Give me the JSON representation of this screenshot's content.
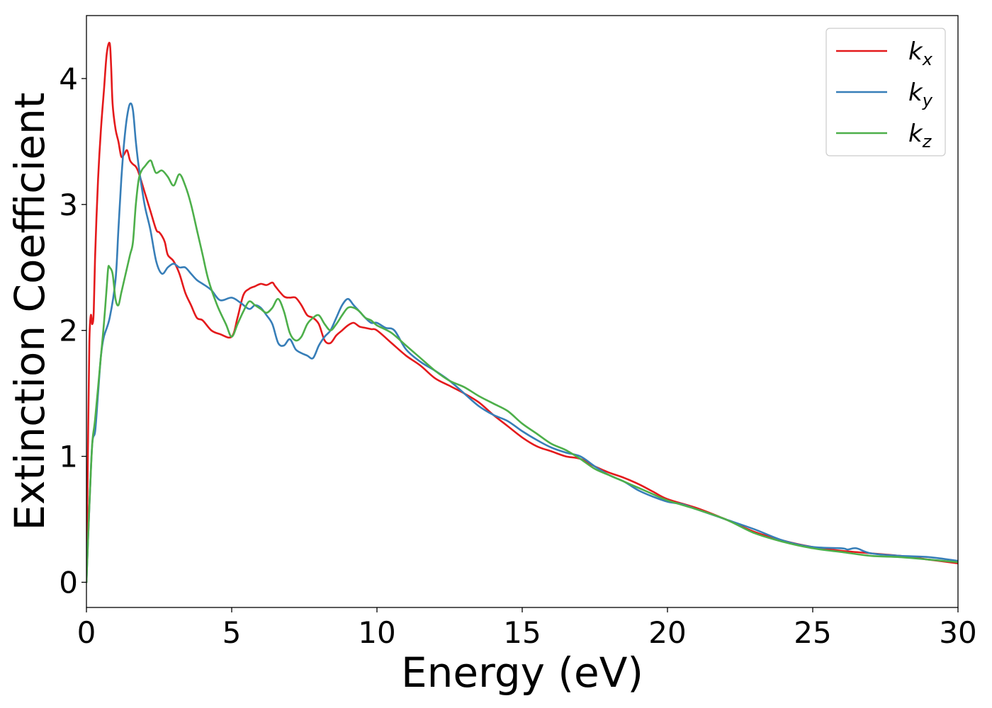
{
  "chart_data": {
    "type": "line",
    "xlabel": "Energy (eV)",
    "ylabel": "Extinction Coefficient",
    "xlim": [
      0,
      30
    ],
    "ylim": [
      -0.2,
      4.5
    ],
    "xticks": [
      "0",
      "5",
      "10",
      "15",
      "20",
      "25",
      "30"
    ],
    "yticks": [
      "0",
      "1",
      "2",
      "3",
      "4"
    ],
    "grid": false,
    "legend_position": "top-right",
    "series": [
      {
        "name": "k",
        "subscript": "x",
        "color": "#e41a1c",
        "x": [
          0,
          0.05,
          0.1,
          0.15,
          0.2,
          0.25,
          0.3,
          0.4,
          0.5,
          0.6,
          0.7,
          0.8,
          0.85,
          0.9,
          1.0,
          1.1,
          1.2,
          1.3,
          1.4,
          1.5,
          1.6,
          1.7,
          1.8,
          2.0,
          2.2,
          2.4,
          2.5,
          2.6,
          2.7,
          2.8,
          3.0,
          3.2,
          3.4,
          3.6,
          3.8,
          4.0,
          4.3,
          4.6,
          5.0,
          5.2,
          5.4,
          5.6,
          5.8,
          6.0,
          6.2,
          6.4,
          6.5,
          6.8,
          7.0,
          7.2,
          7.4,
          7.6,
          7.8,
          8.0,
          8.2,
          8.4,
          8.6,
          8.8,
          9.0,
          9.2,
          9.4,
          9.6,
          9.8,
          10.0,
          10.5,
          11.0,
          11.5,
          12.0,
          12.5,
          13.0,
          13.5,
          14.0,
          14.5,
          15.0,
          15.5,
          16.0,
          16.5,
          17.0,
          17.5,
          18.0,
          18.5,
          19.0,
          19.5,
          20.0,
          21.0,
          22.0,
          23.0,
          24.0,
          25.0,
          26.0,
          27.0,
          28.0,
          29.0,
          30.0
        ],
        "values": [
          0.0,
          1.0,
          1.9,
          2.12,
          2.05,
          2.15,
          2.6,
          3.2,
          3.6,
          3.9,
          4.2,
          4.28,
          4.1,
          3.8,
          3.6,
          3.5,
          3.38,
          3.4,
          3.43,
          3.35,
          3.32,
          3.3,
          3.25,
          3.1,
          2.95,
          2.8,
          2.78,
          2.75,
          2.7,
          2.6,
          2.55,
          2.45,
          2.3,
          2.2,
          2.1,
          2.08,
          2.0,
          1.97,
          1.95,
          2.1,
          2.28,
          2.33,
          2.35,
          2.37,
          2.36,
          2.38,
          2.35,
          2.27,
          2.26,
          2.26,
          2.2,
          2.12,
          2.1,
          2.05,
          1.92,
          1.9,
          1.96,
          2.0,
          2.04,
          2.06,
          2.03,
          2.02,
          2.01,
          2.0,
          1.9,
          1.8,
          1.72,
          1.62,
          1.56,
          1.5,
          1.43,
          1.33,
          1.24,
          1.15,
          1.08,
          1.04,
          1.0,
          0.98,
          0.92,
          0.87,
          0.83,
          0.78,
          0.72,
          0.66,
          0.59,
          0.5,
          0.4,
          0.33,
          0.28,
          0.25,
          0.23,
          0.21,
          0.18,
          0.15
        ]
      },
      {
        "name": "k",
        "subscript": "y",
        "color": "#377eb8",
        "x": [
          0,
          0.1,
          0.2,
          0.3,
          0.4,
          0.5,
          0.6,
          0.8,
          1.0,
          1.1,
          1.2,
          1.3,
          1.4,
          1.5,
          1.6,
          1.7,
          1.8,
          2.0,
          2.2,
          2.4,
          2.6,
          2.8,
          3.0,
          3.2,
          3.4,
          3.6,
          3.8,
          4.0,
          4.3,
          4.6,
          5.0,
          5.3,
          5.6,
          5.8,
          6.0,
          6.2,
          6.4,
          6.6,
          6.8,
          7.0,
          7.2,
          7.4,
          7.6,
          7.8,
          8.0,
          8.2,
          8.4,
          8.6,
          8.8,
          9.0,
          9.2,
          9.4,
          9.6,
          9.8,
          10.0,
          10.3,
          10.6,
          11.0,
          11.5,
          12.0,
          12.5,
          13.0,
          13.5,
          14.0,
          14.5,
          15.0,
          15.5,
          16.0,
          16.5,
          17.0,
          17.5,
          18.0,
          18.5,
          19.0,
          19.5,
          20.0,
          20.5,
          21.0,
          22.0,
          23.0,
          24.0,
          25.0,
          26.0,
          26.2,
          26.5,
          27.0,
          28.0,
          29.0,
          30.0
        ],
        "values": [
          0.0,
          0.6,
          1.1,
          1.2,
          1.5,
          1.8,
          1.95,
          2.1,
          2.4,
          2.8,
          3.2,
          3.5,
          3.7,
          3.8,
          3.75,
          3.5,
          3.3,
          3.0,
          2.8,
          2.55,
          2.45,
          2.5,
          2.53,
          2.5,
          2.5,
          2.45,
          2.4,
          2.37,
          2.32,
          2.24,
          2.26,
          2.22,
          2.17,
          2.2,
          2.18,
          2.12,
          2.05,
          1.9,
          1.88,
          1.93,
          1.85,
          1.82,
          1.8,
          1.78,
          1.88,
          1.95,
          2.0,
          2.1,
          2.2,
          2.25,
          2.2,
          2.15,
          2.1,
          2.06,
          2.06,
          2.02,
          2.0,
          1.85,
          1.75,
          1.68,
          1.6,
          1.5,
          1.4,
          1.33,
          1.28,
          1.2,
          1.13,
          1.07,
          1.03,
          1.0,
          0.92,
          0.85,
          0.8,
          0.73,
          0.68,
          0.64,
          0.62,
          0.58,
          0.5,
          0.42,
          0.33,
          0.28,
          0.27,
          0.26,
          0.27,
          0.23,
          0.21,
          0.2,
          0.17
        ]
      },
      {
        "name": "k",
        "subscript": "z",
        "color": "#4daf4a",
        "x": [
          0,
          0.1,
          0.2,
          0.3,
          0.5,
          0.6,
          0.7,
          0.75,
          0.8,
          0.9,
          1.0,
          1.1,
          1.2,
          1.3,
          1.5,
          1.6,
          1.7,
          1.8,
          1.9,
          2.0,
          2.2,
          2.3,
          2.4,
          2.6,
          2.8,
          3.0,
          3.2,
          3.4,
          3.6,
          3.8,
          4.0,
          4.2,
          4.5,
          4.8,
          5.0,
          5.2,
          5.4,
          5.6,
          5.8,
          6.0,
          6.2,
          6.4,
          6.6,
          6.8,
          7.0,
          7.2,
          7.4,
          7.6,
          7.8,
          8.0,
          8.2,
          8.4,
          8.6,
          8.8,
          9.0,
          9.2,
          9.4,
          9.6,
          9.8,
          10.0,
          10.5,
          11.0,
          11.5,
          12.0,
          12.5,
          13.0,
          13.5,
          14.0,
          14.5,
          15.0,
          15.5,
          16.0,
          16.5,
          17.0,
          17.5,
          18.0,
          18.5,
          19.0,
          19.5,
          20.0,
          21.0,
          22.0,
          23.0,
          24.0,
          25.0,
          26.0,
          27.0,
          28.0,
          29.0,
          30.0
        ],
        "values": [
          0.0,
          0.6,
          1.1,
          1.3,
          1.8,
          2.05,
          2.35,
          2.5,
          2.5,
          2.45,
          2.25,
          2.2,
          2.3,
          2.4,
          2.6,
          2.7,
          3.0,
          3.2,
          3.27,
          3.3,
          3.35,
          3.3,
          3.25,
          3.27,
          3.22,
          3.15,
          3.24,
          3.15,
          3.0,
          2.8,
          2.6,
          2.4,
          2.2,
          2.05,
          1.95,
          2.05,
          2.15,
          2.23,
          2.2,
          2.17,
          2.14,
          2.18,
          2.25,
          2.15,
          1.98,
          1.92,
          1.95,
          2.05,
          2.1,
          2.12,
          2.05,
          2.0,
          2.05,
          2.12,
          2.18,
          2.18,
          2.15,
          2.1,
          2.08,
          2.04,
          1.98,
          1.88,
          1.78,
          1.68,
          1.6,
          1.55,
          1.48,
          1.42,
          1.36,
          1.26,
          1.18,
          1.1,
          1.05,
          0.98,
          0.9,
          0.85,
          0.8,
          0.75,
          0.7,
          0.65,
          0.58,
          0.5,
          0.39,
          0.32,
          0.27,
          0.24,
          0.21,
          0.2,
          0.18,
          0.16
        ]
      }
    ]
  }
}
